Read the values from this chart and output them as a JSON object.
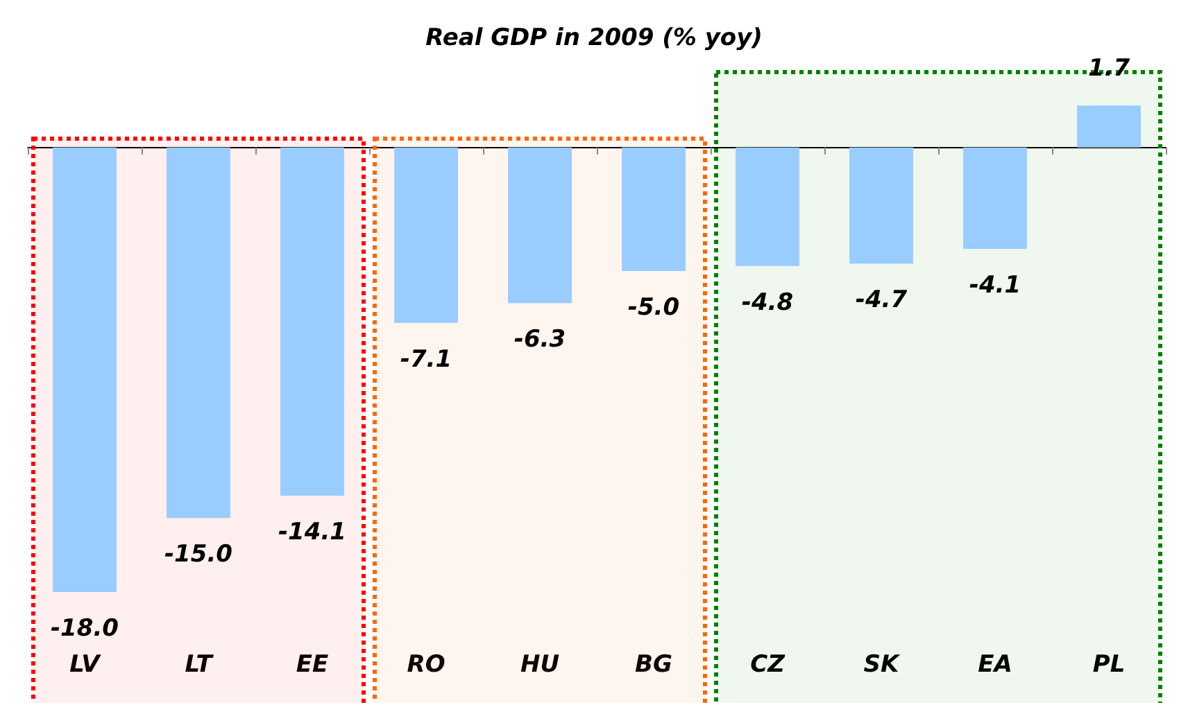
{
  "chart_data": {
    "type": "bar",
    "title": "Real GDP in 2009 (% yoy)",
    "categories": [
      "LV",
      "LT",
      "EE",
      "RO",
      "HU",
      "BG",
      "CZ",
      "SK",
      "EA",
      "PL"
    ],
    "values": [
      -18.0,
      -15.0,
      -14.1,
      -7.1,
      -6.3,
      -5.0,
      -4.8,
      -4.7,
      -4.1,
      1.7
    ],
    "value_labels": [
      "-18.0",
      "-15.0",
      "-14.1",
      "-7.1",
      "-6.3",
      "-5.0",
      "-4.8",
      "-4.7",
      "-4.1",
      "1.7"
    ],
    "color": "#99ccff",
    "grid": false,
    "bands": [
      {
        "axis": "x",
        "from": "LV",
        "to": "EE",
        "color": "#ff0000"
      },
      {
        "axis": "x",
        "from": "RO",
        "to": "BG",
        "color": "#ff6600"
      },
      {
        "axis": "x",
        "from": "CZ",
        "to": "PL",
        "color": "#008000"
      }
    ]
  }
}
